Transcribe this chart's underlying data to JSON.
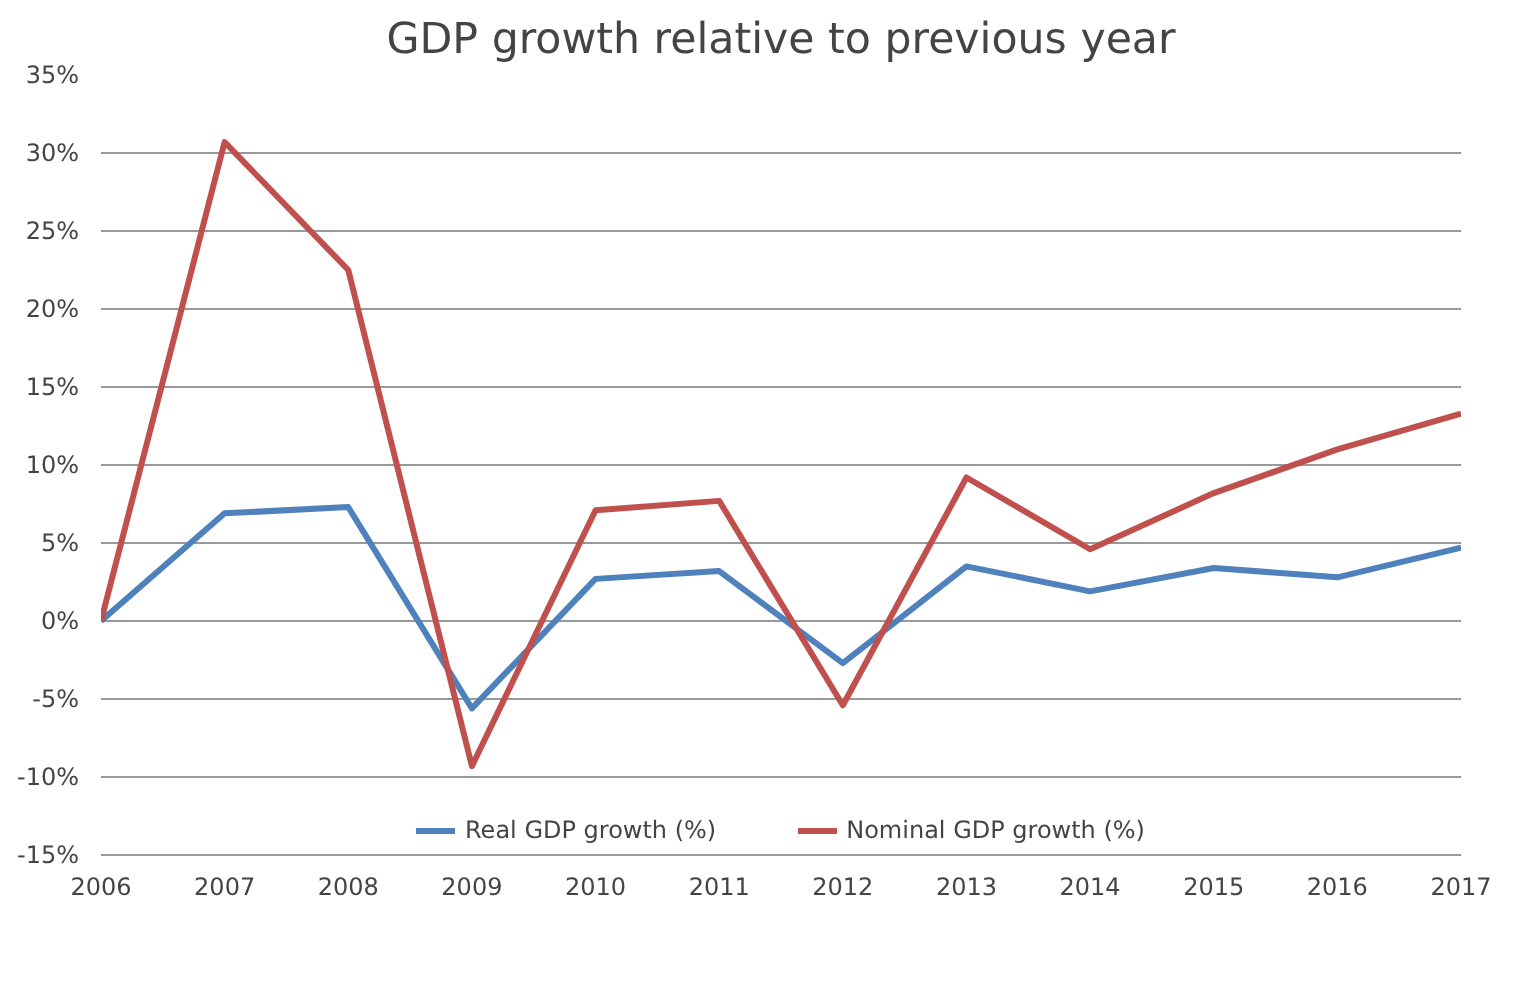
{
  "chart_data": {
    "type": "line",
    "title": "GDP growth relative to previous year",
    "categories": [
      "2006",
      "2007",
      "2008",
      "2009",
      "2010",
      "2011",
      "2012",
      "2013",
      "2014",
      "2015",
      "2016",
      "2017"
    ],
    "series": [
      {
        "name": "Real GDP growth (%)",
        "color": "#4f81bd",
        "values": [
          0,
          6.9,
          7.3,
          -5.6,
          2.7,
          3.2,
          -2.7,
          3.5,
          1.9,
          3.4,
          2.8,
          4.7
        ]
      },
      {
        "name": "Nominal GDP growth (%)",
        "color": "#c0504d",
        "values": [
          0,
          30.7,
          22.5,
          -9.3,
          7.1,
          7.7,
          -5.4,
          9.2,
          4.6,
          8.2,
          11.0,
          13.3
        ]
      }
    ],
    "ylim": [
      -15,
      35
    ],
    "yticks": [
      {
        "value": -15,
        "label": "-15%"
      },
      {
        "value": -10,
        "label": "-10%"
      },
      {
        "value": -5,
        "label": "-5%"
      },
      {
        "value": 0,
        "label": "0%"
      },
      {
        "value": 5,
        "label": "5%"
      },
      {
        "value": 10,
        "label": "10%"
      },
      {
        "value": 15,
        "label": "15%"
      },
      {
        "value": 20,
        "label": "20%"
      },
      {
        "value": 25,
        "label": "25%"
      },
      {
        "value": 30,
        "label": "30%"
      },
      {
        "value": 35,
        "label": "35%"
      }
    ],
    "grid": "y",
    "legend": "bottom",
    "line_style": "solid"
  }
}
